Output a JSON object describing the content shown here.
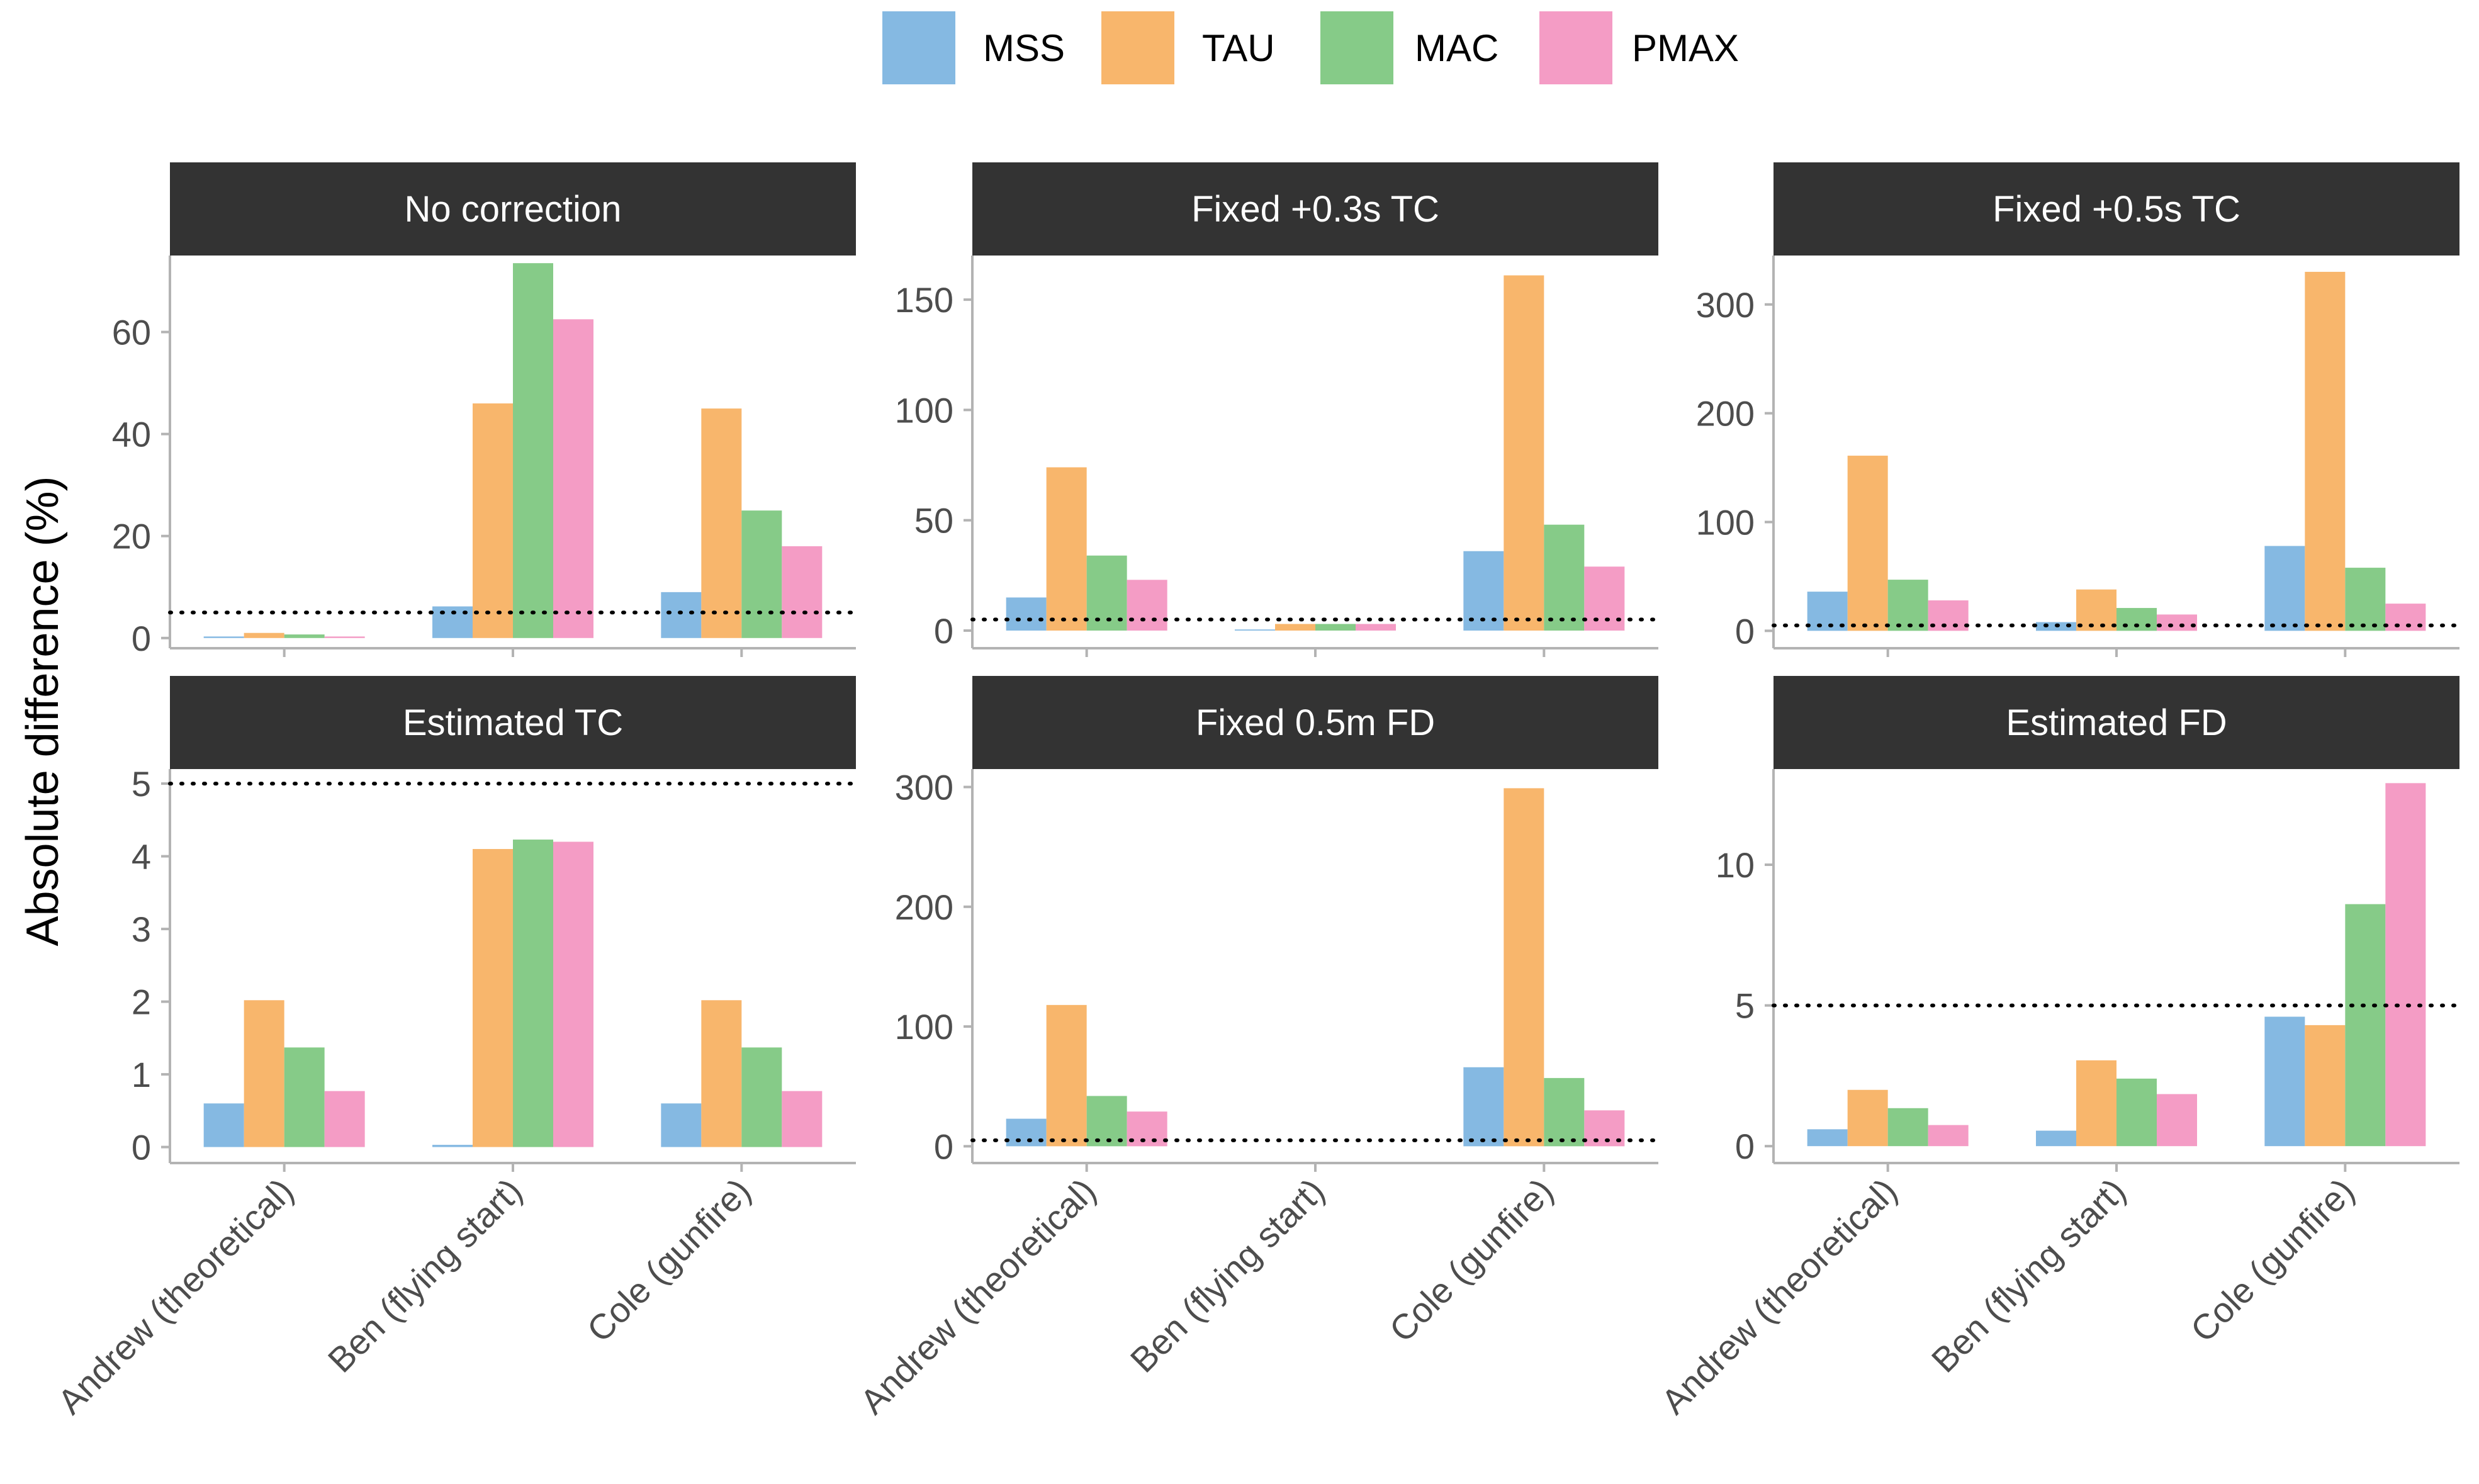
{
  "chart_data": {
    "type": "bar",
    "layout": "facet-grid 2x3, free y scales",
    "ylabel": "Absolute difference (%)",
    "xlabel": "",
    "categories": [
      "Andrew (theoretical)",
      "Ben (flying start)",
      "Cole (gunfire)"
    ],
    "legend": {
      "position": "top",
      "entries": [
        {
          "name": "MSS",
          "color": "#85B9E2"
        },
        {
          "name": "TAU",
          "color": "#F8B66C"
        },
        {
          "name": "MAC",
          "color": "#86CB88"
        },
        {
          "name": "PMAX",
          "color": "#F49CC5"
        }
      ]
    },
    "reference_line": {
      "value": 5,
      "style": "dotted"
    },
    "panels": [
      {
        "title": "No correction",
        "ylim": [
          -2,
          75
        ],
        "yticks": [
          0,
          20,
          40,
          60
        ],
        "series": [
          {
            "name": "MSS",
            "values": [
              0.3,
              6.2,
              9
            ]
          },
          {
            "name": "TAU",
            "values": [
              1,
              46,
              45
            ]
          },
          {
            "name": "MAC",
            "values": [
              0.7,
              73.5,
              25
            ]
          },
          {
            "name": "PMAX",
            "values": [
              0.3,
              62.5,
              18
            ]
          }
        ]
      },
      {
        "title": "Fixed +0.3s TC",
        "ylim": [
          -8,
          170
        ],
        "yticks": [
          0,
          50,
          100,
          150
        ],
        "series": [
          {
            "name": "MSS",
            "values": [
              15,
              0.5,
              36
            ]
          },
          {
            "name": "TAU",
            "values": [
              74,
              3,
              161
            ]
          },
          {
            "name": "MAC",
            "values": [
              34,
              3,
              48
            ]
          },
          {
            "name": "PMAX",
            "values": [
              23,
              3,
              29
            ]
          }
        ]
      },
      {
        "title": "Fixed +0.5s TC",
        "ylim": [
          -16,
          345
        ],
        "yticks": [
          0,
          100,
          200,
          300
        ],
        "series": [
          {
            "name": "MSS",
            "values": [
              36,
              8,
              78
            ]
          },
          {
            "name": "TAU",
            "values": [
              161,
              38,
              330
            ]
          },
          {
            "name": "MAC",
            "values": [
              47,
              21,
              58
            ]
          },
          {
            "name": "PMAX",
            "values": [
              28,
              15,
              25
            ]
          }
        ]
      },
      {
        "title": "Estimated TC",
        "ylim": [
          -0.22,
          5.2
        ],
        "yticks": [
          0,
          1,
          2,
          3,
          4,
          5
        ],
        "series": [
          {
            "name": "MSS",
            "values": [
              0.6,
              0.03,
              0.6
            ]
          },
          {
            "name": "TAU",
            "values": [
              2.02,
              4.1,
              2.02
            ]
          },
          {
            "name": "MAC",
            "values": [
              1.37,
              4.23,
              1.37
            ]
          },
          {
            "name": "PMAX",
            "values": [
              0.77,
              4.2,
              0.77
            ]
          }
        ]
      },
      {
        "title": "Fixed 0.5m FD",
        "ylim": [
          -14,
          315
        ],
        "yticks": [
          0,
          100,
          200,
          300
        ],
        "series": [
          {
            "name": "MSS",
            "values": [
              23,
              0,
              66
            ]
          },
          {
            "name": "TAU",
            "values": [
              118,
              0,
              299
            ]
          },
          {
            "name": "MAC",
            "values": [
              42,
              0,
              57
            ]
          },
          {
            "name": "PMAX",
            "values": [
              29,
              0,
              30
            ]
          }
        ]
      },
      {
        "title": "Estimated FD",
        "ylim": [
          -0.6,
          13.4
        ],
        "yticks": [
          0,
          5,
          10
        ],
        "series": [
          {
            "name": "MSS",
            "values": [
              0.6,
              0.55,
              4.6
            ]
          },
          {
            "name": "TAU",
            "values": [
              2.0,
              3.05,
              4.3
            ]
          },
          {
            "name": "MAC",
            "values": [
              1.35,
              2.4,
              8.6
            ]
          },
          {
            "name": "PMAX",
            "values": [
              0.75,
              1.85,
              12.9
            ]
          }
        ]
      }
    ]
  }
}
